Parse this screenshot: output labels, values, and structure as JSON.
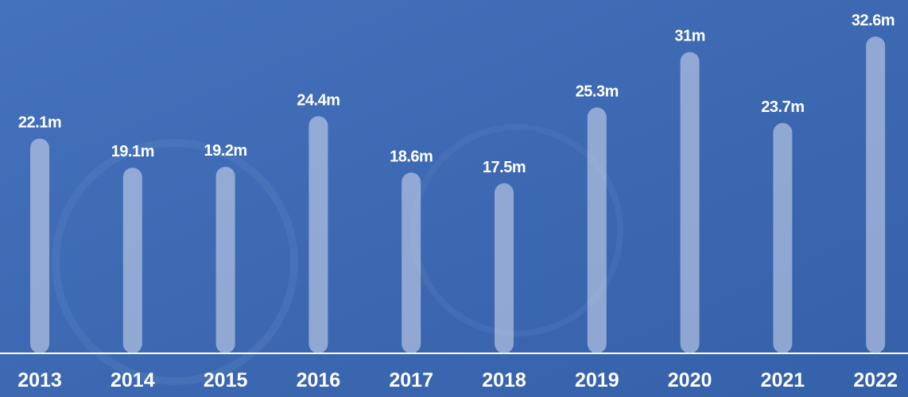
{
  "chart_data": {
    "type": "bar",
    "categories": [
      "2013",
      "2014",
      "2015",
      "2016",
      "2017",
      "2018",
      "2019",
      "2020",
      "2021",
      "2022"
    ],
    "values": [
      22.1,
      19.1,
      19.2,
      24.4,
      18.6,
      17.5,
      25.3,
      31,
      23.7,
      32.6
    ],
    "value_labels": [
      "22.1m",
      "19.1m",
      "19.2m",
      "24.4m",
      "18.6m",
      "17.5m",
      "25.3m",
      "31m",
      "23.7m",
      "32.6m"
    ],
    "color": "#c9d4ea"
  }
}
